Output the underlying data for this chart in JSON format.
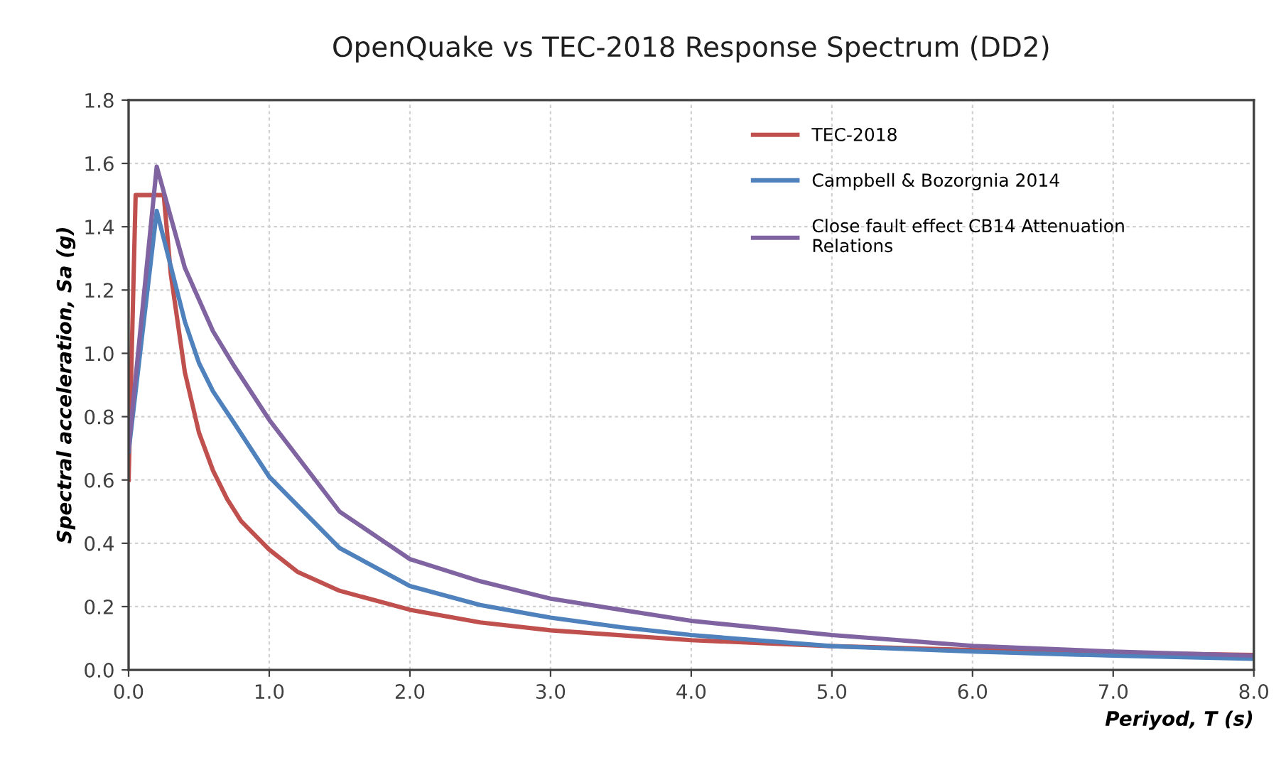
{
  "chart_data": {
    "type": "line",
    "title": "OpenQuake vs TEC-2018 Response Spectrum (DD2)",
    "xlabel": "Periyod, T (s)",
    "ylabel": "Spectral acceleration, Sa (g)",
    "xlim": [
      0,
      8
    ],
    "ylim": [
      0,
      1.8
    ],
    "xticks": [
      {
        "value": 0,
        "label": "0.0"
      },
      {
        "value": 1,
        "label": "1.0"
      },
      {
        "value": 2,
        "label": "2.0"
      },
      {
        "value": 3,
        "label": "3.0"
      },
      {
        "value": 4,
        "label": "4.0"
      },
      {
        "value": 5,
        "label": "5.0"
      },
      {
        "value": 6,
        "label": "6.0"
      },
      {
        "value": 7,
        "label": "7.0"
      },
      {
        "value": 8,
        "label": "8.0"
      }
    ],
    "yticks": [
      {
        "value": 0,
        "label": "0.0"
      },
      {
        "value": 0.2,
        "label": "0.2"
      },
      {
        "value": 0.4,
        "label": "0.4"
      },
      {
        "value": 0.6,
        "label": "0.6"
      },
      {
        "value": 0.8,
        "label": "0.8"
      },
      {
        "value": 1,
        "label": "1.0"
      },
      {
        "value": 1.2,
        "label": "1.2"
      },
      {
        "value": 1.4,
        "label": "1.4"
      },
      {
        "value": 1.6,
        "label": "1.6"
      },
      {
        "value": 1.8,
        "label": "1.8"
      }
    ],
    "grid": true,
    "legend": "top right",
    "marker": "none",
    "line_style": "solid",
    "series": [
      {
        "name": "TEC-2018",
        "color": "#c0504d",
        "x": [
          0,
          0.05,
          0.25,
          0.3,
          0.4,
          0.5,
          0.6,
          0.7,
          0.8,
          1.0,
          1.2,
          1.5,
          2,
          2.5,
          3,
          4,
          5,
          6,
          7,
          8
        ],
        "values": [
          0.6,
          1.5,
          1.5,
          1.25,
          0.94,
          0.75,
          0.63,
          0.54,
          0.47,
          0.38,
          0.31,
          0.25,
          0.19,
          0.15,
          0.125,
          0.094,
          0.075,
          0.063,
          0.054,
          0.047
        ]
      },
      {
        "name": "Campbell & Bozorgnia 2014",
        "color": "#4f81bd",
        "x": [
          0,
          0.2,
          0.4,
          0.5,
          0.6,
          0.75,
          1.0,
          1.5,
          2,
          2.5,
          3,
          3.5,
          4,
          5,
          6,
          7,
          8
        ],
        "values": [
          0.69,
          1.45,
          1.1,
          0.97,
          0.88,
          0.78,
          0.61,
          0.385,
          0.265,
          0.205,
          0.165,
          0.135,
          0.11,
          0.075,
          0.058,
          0.045,
          0.035
        ]
      },
      {
        "name": "Close fault effect CB14 Attenuation\nRelations",
        "color": "#8064a2",
        "x": [
          0,
          0.2,
          0.4,
          0.6,
          0.75,
          1.0,
          1.5,
          2,
          2.5,
          3,
          3.5,
          4,
          5,
          6,
          7,
          8
        ],
        "values": [
          0.7,
          1.59,
          1.27,
          1.07,
          0.96,
          0.79,
          0.5,
          0.35,
          0.28,
          0.225,
          0.19,
          0.155,
          0.11,
          0.076,
          0.058,
          0.045
        ]
      }
    ]
  }
}
